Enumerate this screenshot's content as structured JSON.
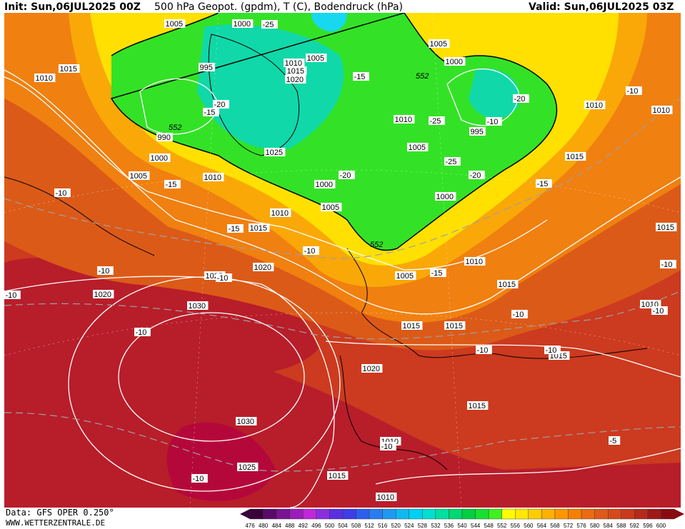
{
  "header": {
    "init": "Init: Sun,06JUL2025 00Z",
    "title": "500 hPa Geopot. (gpdm), T (C), Bodendruck (hPa)",
    "valid": "Valid: Sun,06JUL2025 03Z"
  },
  "footer": {
    "data_source": "Data: GFS OPER 0.250°",
    "website": "WWW.WETTERZENTRALE.DE"
  },
  "legend": {
    "values": [
      "476",
      "480",
      "484",
      "488",
      "492",
      "496",
      "500",
      "504",
      "508",
      "512",
      "516",
      "520",
      "524",
      "528",
      "532",
      "536",
      "540",
      "544",
      "548",
      "552",
      "556",
      "560",
      "564",
      "568",
      "572",
      "576",
      "580",
      "584",
      "588",
      "592",
      "596",
      "600"
    ],
    "colors": [
      "#3a003a",
      "#5a0a6a",
      "#7a1490",
      "#9b1cb8",
      "#bf27d8",
      "#8a2ee0",
      "#5a2fe0",
      "#3f3ce8",
      "#2c5ff0",
      "#2a7df0",
      "#1f99f0",
      "#10b8f0",
      "#00d0f0",
      "#00e0d0",
      "#00e0a0",
      "#00d870",
      "#00d040",
      "#18e030",
      "#40f020",
      "#ffff00",
      "#ffe800",
      "#ffcc00",
      "#ffb000",
      "#ff9600",
      "#f58000",
      "#ea6a10",
      "#df5a18",
      "#d44a1a",
      "#c83a1c",
      "#b52a1c",
      "#a01818",
      "#8a0a10"
    ]
  },
  "map": {
    "colors": {
      "deep_red": "#b81d2a",
      "red": "#cc3a1f",
      "dark_orange": "#dc5a18",
      "orange": "#f08010",
      "light_orange": "#f9a808",
      "yellow": "#ffe000",
      "green": "#33e226",
      "teal": "#10d8a8",
      "cyan": "#18d8f0",
      "magenta_red": "#b5083a"
    },
    "contour_552_label": "552",
    "pressure_labels": [
      "1005",
      "1000",
      "1015",
      "1010",
      "995",
      "1010",
      "1015",
      "1020",
      "1005",
      "1025",
      "990",
      "1000",
      "1005",
      "1010",
      "1000",
      "1005",
      "1010",
      "1015",
      "1010",
      "1005",
      "1000",
      "995",
      "1000",
      "1005",
      "1015",
      "1010",
      "1010",
      "1005",
      "1015",
      "1015",
      "1020",
      "1025",
      "1030",
      "1030",
      "1025",
      "1020",
      "1020",
      "1015",
      "1015",
      "1015",
      "1010",
      "1010",
      "1015",
      "1010",
      "1015",
      "1010"
    ],
    "temp_labels": [
      "-25",
      "-15",
      "-20",
      "-15",
      "-25",
      "-20",
      "-20",
      "-25",
      "-20",
      "-15",
      "-10",
      "-15",
      "-10",
      "-15",
      "-15",
      "-10",
      "-10",
      "-10",
      "-10",
      "-10",
      "-10",
      "-10",
      "-10",
      "-10",
      "-10",
      "-10",
      "-5",
      "-10",
      "-10"
    ]
  }
}
